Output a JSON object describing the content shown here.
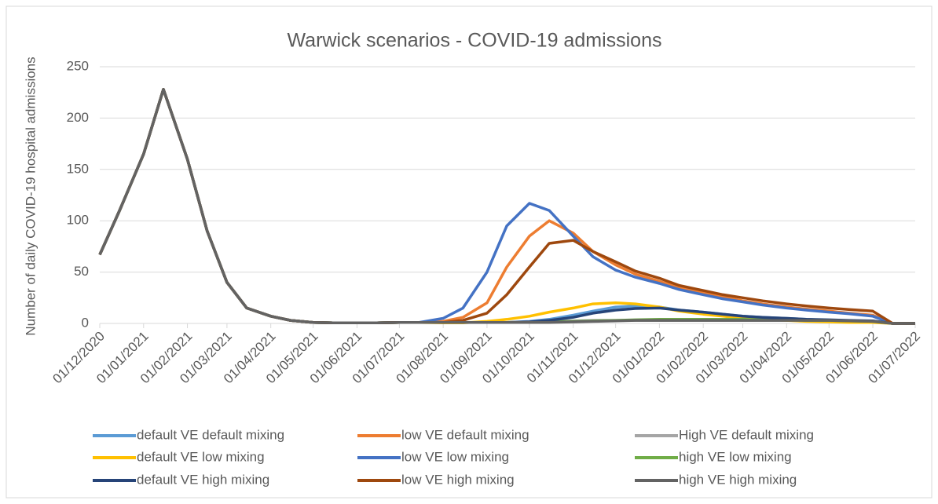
{
  "chart_data": {
    "type": "line",
    "title": "Warwick scenarios - COVID-19 admissions",
    "y_label": "Number of daily COVID-19 hospital admissions",
    "x": [
      "01/12/2020",
      "15/12/2020",
      "01/01/2021",
      "15/01/2021",
      "01/02/2021",
      "15/02/2021",
      "01/03/2021",
      "15/03/2021",
      "01/04/2021",
      "15/04/2021",
      "01/05/2021",
      "15/05/2021",
      "01/06/2021",
      "15/06/2021",
      "01/07/2021",
      "15/07/2021",
      "01/08/2021",
      "15/08/2021",
      "01/09/2021",
      "15/09/2021",
      "01/10/2021",
      "15/10/2021",
      "01/11/2021",
      "15/11/2021",
      "01/12/2021",
      "15/12/2021",
      "01/01/2022",
      "15/01/2022",
      "01/02/2022",
      "15/02/2022",
      "01/03/2022",
      "15/03/2022",
      "01/04/2022",
      "15/04/2022",
      "01/05/2022",
      "15/05/2022",
      "01/06/2022",
      "15/06/2022",
      "01/07/2022"
    ],
    "xlim": [
      "01/12/2020",
      "01/07/2022"
    ],
    "xticks": [
      "01/12/2020",
      "01/01/2021",
      "01/02/2021",
      "01/03/2021",
      "01/04/2021",
      "01/05/2021",
      "01/06/2021",
      "01/07/2021",
      "01/08/2021",
      "01/09/2021",
      "01/10/2021",
      "01/11/2021",
      "01/12/2021",
      "01/01/2022",
      "01/02/2022",
      "01/03/2022",
      "01/04/2022",
      "01/05/2022",
      "01/06/2022",
      "01/07/2022"
    ],
    "ylim": [
      0,
      250
    ],
    "yticks": [
      0,
      50,
      100,
      150,
      200,
      250
    ],
    "grid": true,
    "series": [
      {
        "name": "default VE default mixing",
        "color": "#5b9bd5",
        "values": [
          67,
          110,
          165,
          228,
          160,
          90,
          40,
          15,
          7,
          3,
          1,
          0.5,
          0.5,
          0.5,
          1,
          1,
          1,
          1,
          1,
          1,
          2,
          4,
          8,
          12,
          16,
          17,
          16,
          13,
          11,
          9,
          7,
          6,
          5,
          4,
          3,
          2.5,
          2,
          0,
          0
        ]
      },
      {
        "name": "low VE default mixing",
        "color": "#ed7d31",
        "values": [
          67,
          110,
          165,
          228,
          160,
          90,
          40,
          15,
          7,
          3,
          1,
          0.5,
          0.5,
          0.5,
          1,
          1,
          2,
          6,
          20,
          55,
          85,
          100,
          88,
          70,
          57,
          48,
          41,
          35,
          30,
          26,
          22,
          19,
          16,
          14,
          12,
          10,
          8,
          0,
          0
        ]
      },
      {
        "name": "High VE default mixing",
        "color": "#a5a5a5",
        "values": [
          67,
          110,
          165,
          228,
          160,
          90,
          40,
          15,
          7,
          3,
          1,
          0.5,
          0.5,
          0.5,
          1,
          1,
          1,
          1,
          1,
          1,
          1.5,
          2,
          2.5,
          3,
          3,
          3,
          3,
          3,
          3,
          3,
          3,
          3,
          3,
          3,
          2.5,
          2.5,
          2,
          0,
          0
        ]
      },
      {
        "name": "default VE low mixing",
        "color": "#ffc000",
        "values": [
          67,
          110,
          165,
          228,
          160,
          90,
          40,
          15,
          7,
          3,
          1,
          0.5,
          0.5,
          0.5,
          1,
          1,
          0.5,
          0.5,
          2,
          4,
          7,
          11,
          15,
          19,
          20,
          19,
          16,
          12,
          9,
          7,
          5,
          4,
          3,
          2,
          1.5,
          1,
          1,
          0,
          0
        ]
      },
      {
        "name": "low VE low mixing",
        "color": "#4472c4",
        "values": [
          67,
          110,
          165,
          228,
          160,
          90,
          40,
          15,
          7,
          3,
          1,
          0.5,
          0.5,
          0.5,
          1,
          1,
          5,
          15,
          50,
          95,
          117,
          110,
          85,
          65,
          52,
          45,
          39,
          33,
          28,
          24,
          21,
          18,
          15,
          13,
          11,
          9.5,
          7,
          0,
          0
        ]
      },
      {
        "name": "high VE low mixing",
        "color": "#70ad47",
        "values": [
          67,
          110,
          165,
          228,
          160,
          90,
          40,
          15,
          7,
          3,
          1,
          0.5,
          0.5,
          0.5,
          1,
          1,
          1,
          1,
          1,
          1,
          1,
          1.5,
          2,
          2.5,
          3,
          3.5,
          4,
          4,
          4,
          4,
          4,
          3.5,
          3.5,
          3,
          3,
          2.5,
          2,
          0,
          0
        ]
      },
      {
        "name": "default VE high mixing",
        "color": "#264478",
        "values": [
          67,
          110,
          165,
          228,
          160,
          90,
          40,
          15,
          7,
          3,
          1,
          0.5,
          0.5,
          0.5,
          1,
          1,
          1,
          1,
          1,
          1,
          1.5,
          3,
          6,
          10,
          13,
          14.5,
          15,
          13,
          11,
          9,
          7,
          6,
          5,
          4,
          3.5,
          3,
          2.5,
          0,
          0
        ]
      },
      {
        "name": "low VE high mixing",
        "color": "#9e480e",
        "values": [
          67,
          110,
          165,
          228,
          160,
          90,
          40,
          15,
          7,
          3,
          1,
          0.5,
          0.5,
          0.5,
          1,
          1,
          1,
          3,
          10,
          28,
          55,
          78,
          81,
          70,
          60,
          51,
          44,
          37,
          32,
          28,
          25,
          22,
          19,
          17,
          15,
          13.5,
          12,
          0,
          0
        ]
      },
      {
        "name": "high VE high mixing",
        "color": "#636363",
        "values": [
          67,
          110,
          165,
          228,
          160,
          90,
          40,
          15,
          7,
          3,
          1,
          0.5,
          0.5,
          0.5,
          1,
          1,
          1,
          1,
          1,
          1,
          1,
          1,
          1.5,
          2,
          2.5,
          3,
          3,
          3,
          3,
          3,
          3,
          3,
          3,
          3,
          3,
          2.5,
          2,
          0,
          0
        ]
      }
    ]
  }
}
